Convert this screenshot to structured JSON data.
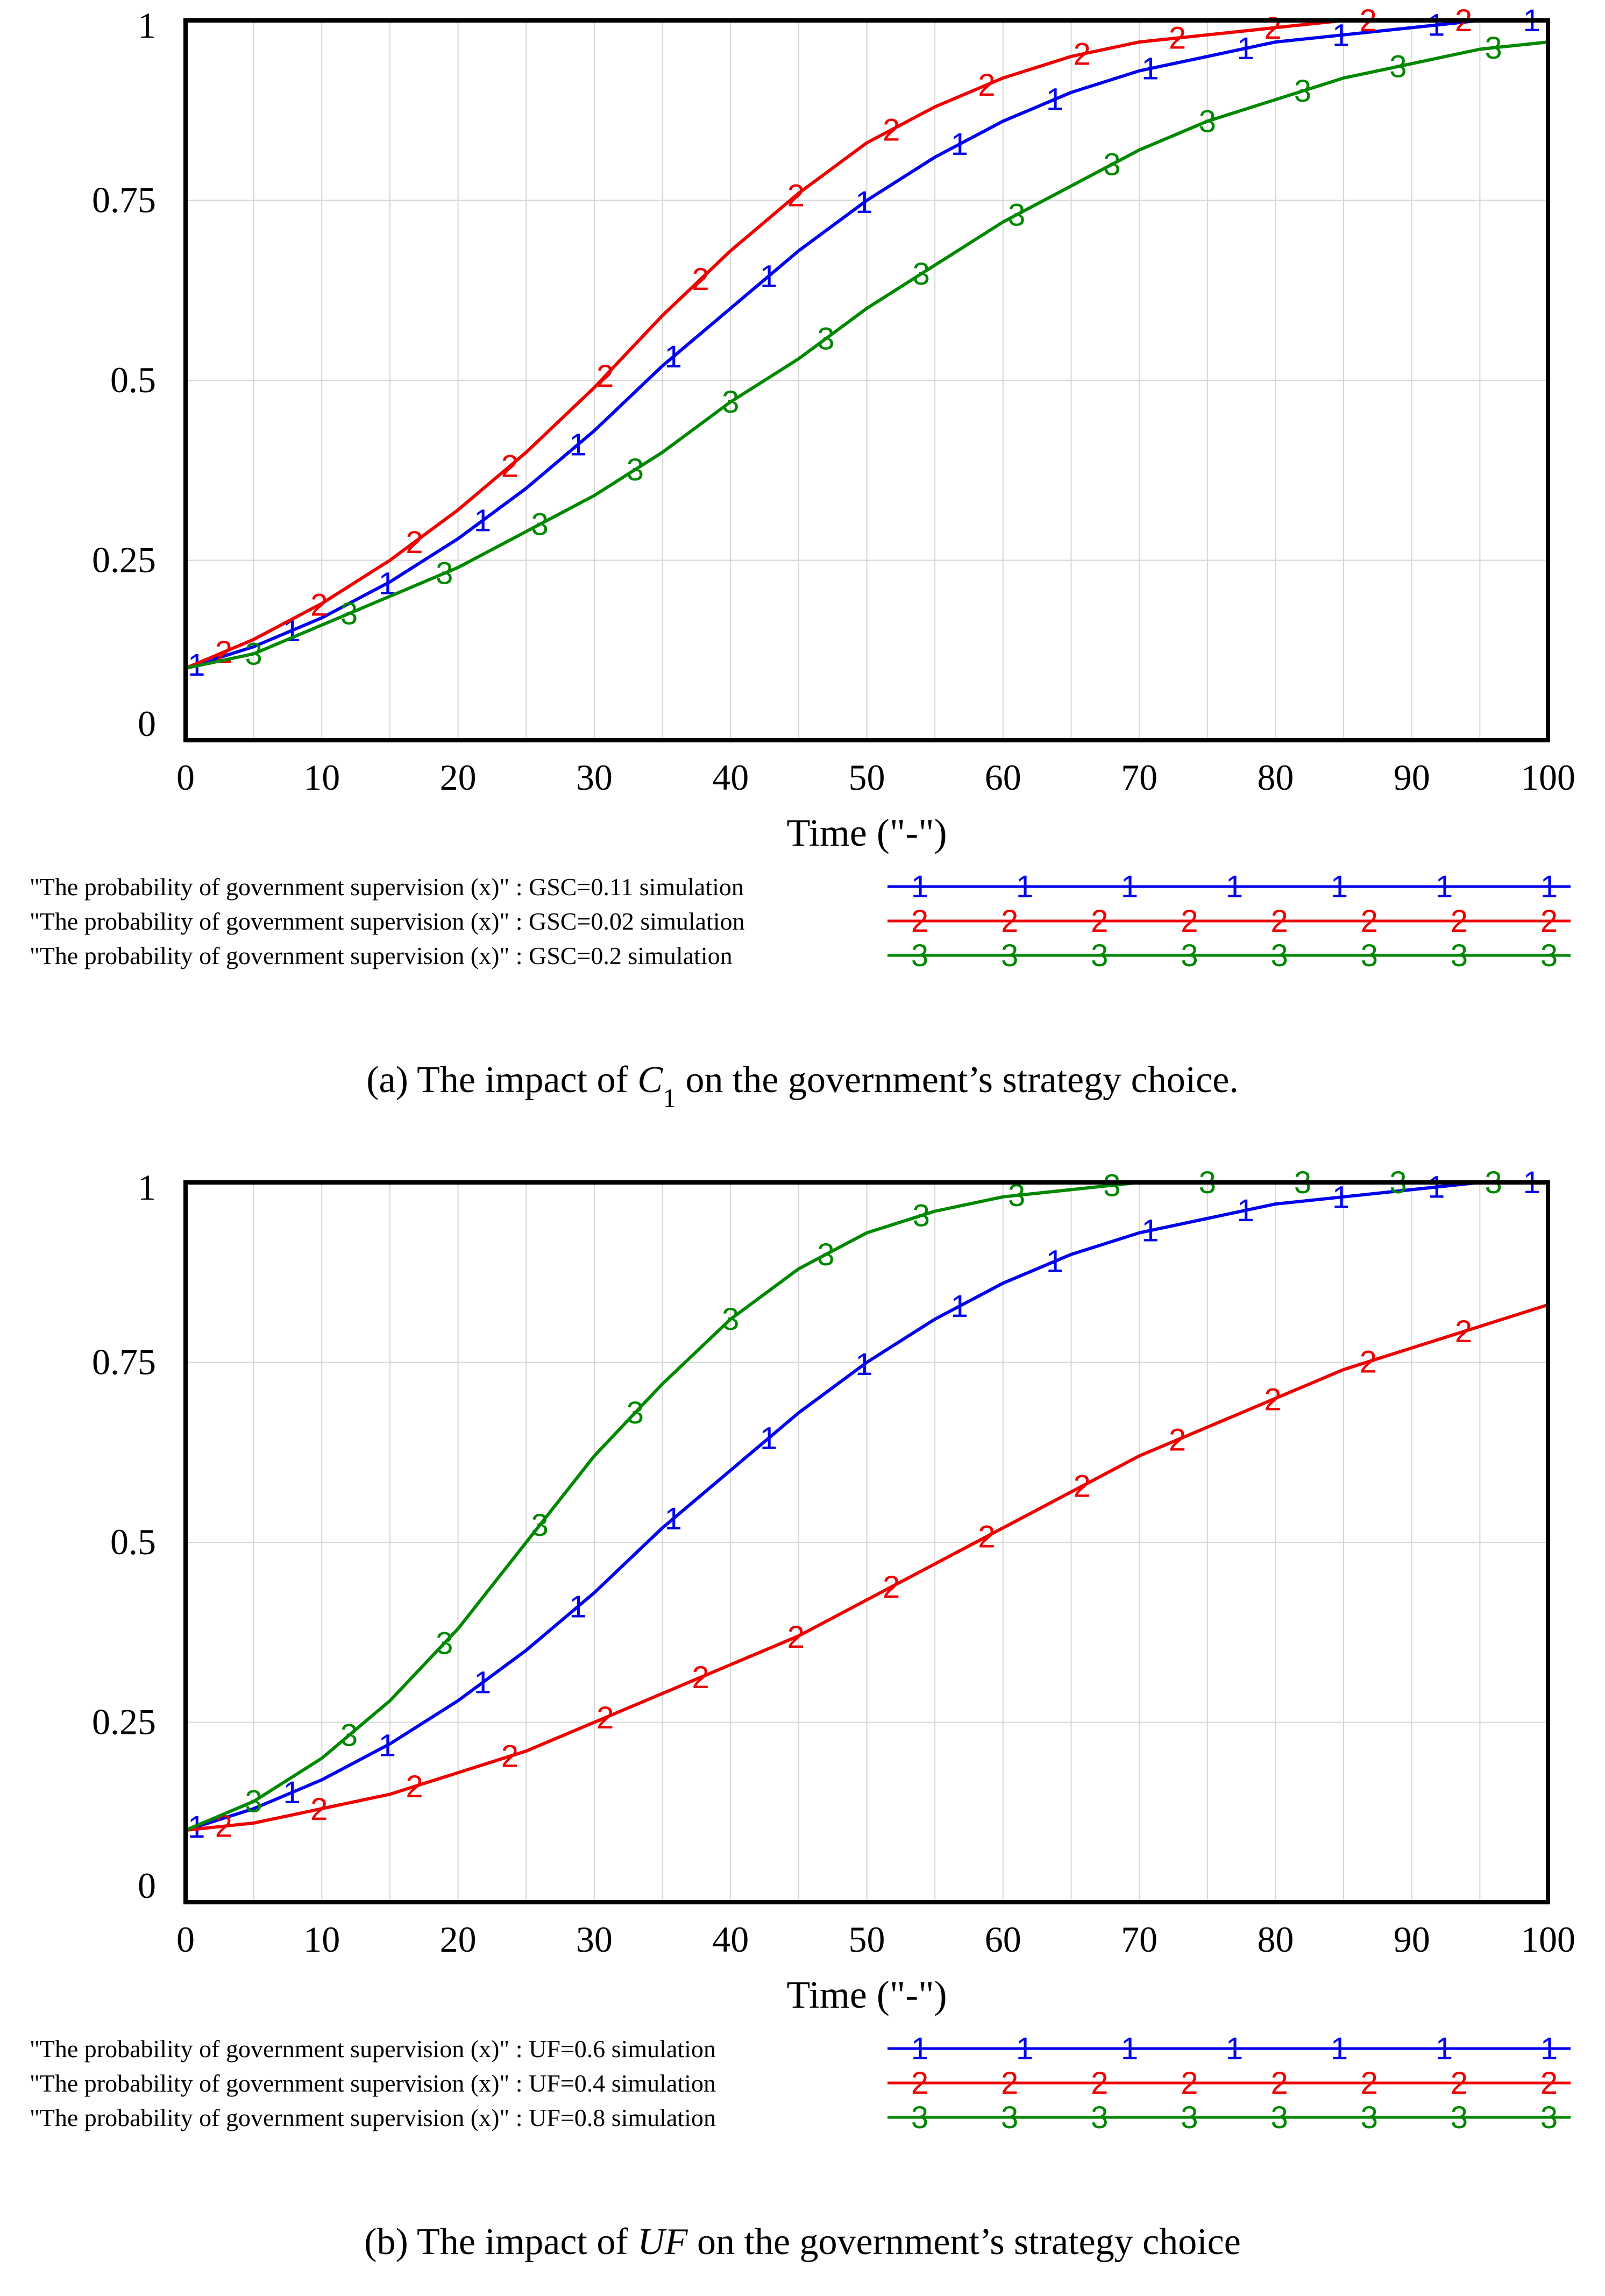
{
  "chart_data": [
    {
      "type": "line",
      "xlabel": "Time (\"-\")",
      "ylabel": "",
      "xlim": [
        0,
        100
      ],
      "ylim": [
        0,
        1
      ],
      "xticks": [
        "0",
        "10",
        "20",
        "30",
        "40",
        "50",
        "60",
        "70",
        "80",
        "90",
        "100"
      ],
      "yticks": [
        "0",
        "0.25",
        "0.5",
        "0.75",
        "1"
      ],
      "grid": true,
      "caption": {
        "prefix": "(a) The impact of ",
        "symbol": "C",
        "subscript": "1",
        "suffix": " on the government’s strategy choice."
      },
      "x": [
        0,
        5,
        10,
        15,
        20,
        25,
        30,
        35,
        40,
        45,
        50,
        55,
        60,
        65,
        70,
        75,
        80,
        85,
        90,
        95,
        100
      ],
      "series": [
        {
          "name": "1",
          "legend": "\"The probability of government supervision (x)\" : GSC=0.11 simulation",
          "color": "#0000ee",
          "values": [
            0.1,
            0.13,
            0.17,
            0.22,
            0.28,
            0.35,
            0.43,
            0.52,
            0.6,
            0.68,
            0.75,
            0.81,
            0.86,
            0.9,
            0.93,
            0.95,
            0.97,
            0.98,
            0.99,
            1.0,
            1.0
          ]
        },
        {
          "name": "2",
          "legend": "\"The probability of government supervision (x)\" : GSC=0.02 simulation",
          "color": "#ee0000",
          "values": [
            0.1,
            0.14,
            0.19,
            0.25,
            0.32,
            0.4,
            0.49,
            0.59,
            0.68,
            0.76,
            0.83,
            0.88,
            0.92,
            0.95,
            0.97,
            0.98,
            0.99,
            1.0,
            1.0,
            1.0,
            1.0
          ]
        },
        {
          "name": "3",
          "legend": "\"The probability of government supervision (x)\" : GSC=0.2 simulation",
          "color": "#008800",
          "values": [
            0.1,
            0.12,
            0.16,
            0.2,
            0.24,
            0.29,
            0.34,
            0.4,
            0.47,
            0.53,
            0.6,
            0.66,
            0.72,
            0.77,
            0.82,
            0.86,
            0.89,
            0.92,
            0.94,
            0.96,
            0.97
          ]
        }
      ]
    },
    {
      "type": "line",
      "xlabel": "Time (\"-\")",
      "ylabel": "",
      "xlim": [
        0,
        100
      ],
      "ylim": [
        0,
        1
      ],
      "xticks": [
        "0",
        "10",
        "20",
        "30",
        "40",
        "50",
        "60",
        "70",
        "80",
        "90",
        "100"
      ],
      "yticks": [
        "0",
        "0.25",
        "0.5",
        "0.75",
        "1"
      ],
      "grid": true,
      "caption": {
        "prefix": "(b) The impact of ",
        "symbol": "UF",
        "subscript": "",
        "suffix": " on the government’s strategy choice"
      },
      "x": [
        0,
        5,
        10,
        15,
        20,
        25,
        30,
        35,
        40,
        45,
        50,
        55,
        60,
        65,
        70,
        75,
        80,
        85,
        90,
        95,
        100
      ],
      "series": [
        {
          "name": "1",
          "legend": "\"The probability of government supervision (x)\" : UF=0.6 simulation",
          "color": "#0000ee",
          "values": [
            0.1,
            0.13,
            0.17,
            0.22,
            0.28,
            0.35,
            0.43,
            0.52,
            0.6,
            0.68,
            0.75,
            0.81,
            0.86,
            0.9,
            0.93,
            0.95,
            0.97,
            0.98,
            0.99,
            1.0,
            1.0
          ]
        },
        {
          "name": "2",
          "legend": "\"The probability of government supervision (x)\" : UF=0.4 simulation",
          "color": "#ee0000",
          "values": [
            0.1,
            0.11,
            0.13,
            0.15,
            0.18,
            0.21,
            0.25,
            0.29,
            0.33,
            0.37,
            0.42,
            0.47,
            0.52,
            0.57,
            0.62,
            0.66,
            0.7,
            0.74,
            0.77,
            0.8,
            0.83
          ]
        },
        {
          "name": "3",
          "legend": "\"The probability of government supervision (x)\" : UF=0.8 simulation",
          "color": "#008800",
          "values": [
            0.1,
            0.14,
            0.2,
            0.28,
            0.38,
            0.5,
            0.62,
            0.72,
            0.81,
            0.88,
            0.93,
            0.96,
            0.98,
            0.99,
            1.0,
            1.0,
            1.0,
            1.0,
            1.0,
            1.0,
            1.0
          ]
        }
      ]
    }
  ]
}
